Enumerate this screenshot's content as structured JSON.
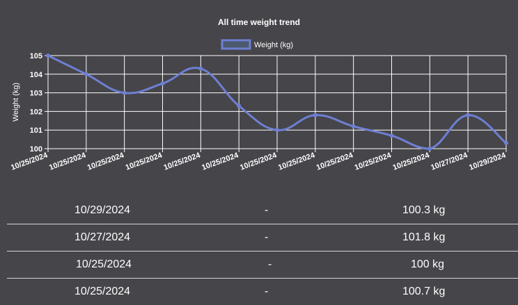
{
  "chart_data": {
    "type": "line",
    "title": "All time weight trend",
    "ylabel": "Weight (kg)",
    "legend": {
      "label": "Weight (kg)",
      "position": "top"
    },
    "ylim": [
      100,
      105
    ],
    "yticks": [
      100,
      101,
      102,
      103,
      104,
      105
    ],
    "grid": true,
    "categories": [
      "10/25/2024",
      "10/25/2024",
      "10/25/2024",
      "10/25/2024",
      "10/25/2024",
      "10/25/2024",
      "10/25/2024",
      "10/25/2024",
      "10/25/2024",
      "10/25/2024",
      "10/25/2024",
      "10/27/2024",
      "10/29/2024"
    ],
    "series": [
      {
        "name": "Weight (kg)",
        "values": [
          105,
          104,
          103,
          103.5,
          104.3,
          102.3,
          101,
          101.8,
          101.2,
          100.7,
          100,
          101.8,
          100.3
        ]
      }
    ],
    "colors": {
      "line": "#6f7fd3",
      "legend_fill": "#4b5a6e",
      "grid": "#ffffff"
    }
  },
  "table": {
    "rows": [
      {
        "date": "10/29/2024",
        "separator": "-",
        "weight": "100.3 kg"
      },
      {
        "date": "10/27/2024",
        "separator": "-",
        "weight": "101.8 kg"
      },
      {
        "date": "10/25/2024",
        "separator": "-",
        "weight": "100 kg"
      },
      {
        "date": "10/25/2024",
        "separator": "-",
        "weight": "100.7 kg"
      }
    ]
  }
}
